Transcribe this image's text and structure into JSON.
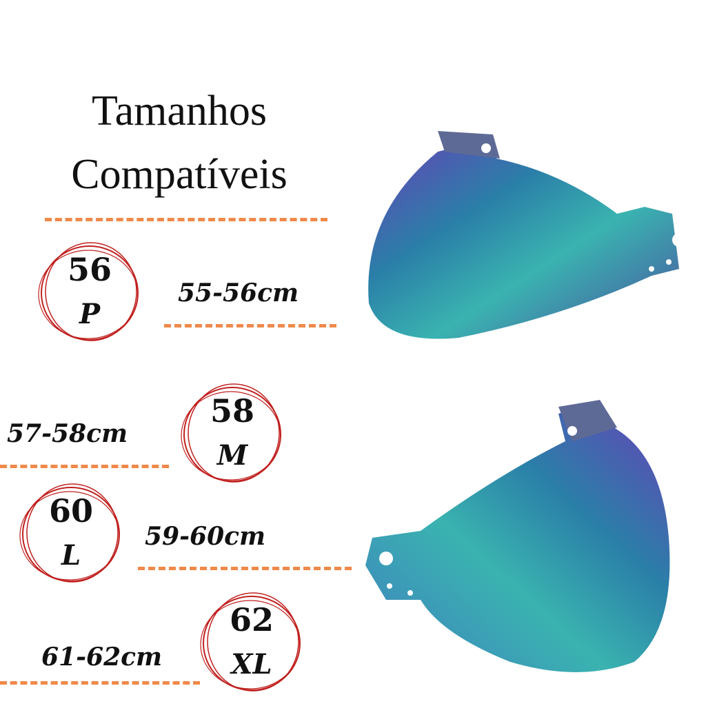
{
  "title": {
    "line1": "Tamanhos",
    "line2": "Compatíveis"
  },
  "sizes": [
    {
      "number": "56",
      "letter": "P",
      "range": "55-56cm"
    },
    {
      "number": "58",
      "letter": "M",
      "range": "57-58cm"
    },
    {
      "number": "60",
      "letter": "L",
      "range": "59-60cm"
    },
    {
      "number": "62",
      "letter": "XL",
      "range": "61-62cm"
    }
  ],
  "colors": {
    "dash": "#f0894a",
    "circle": "#c0201e",
    "text": "#111111"
  }
}
